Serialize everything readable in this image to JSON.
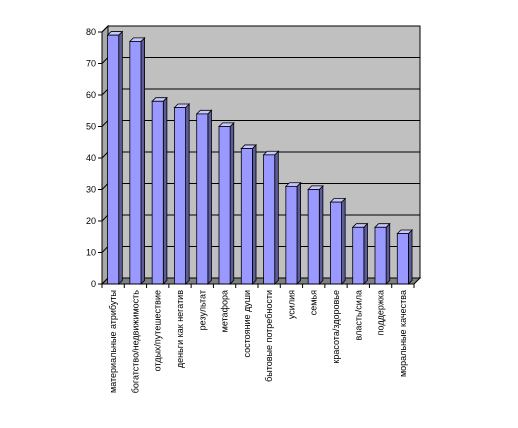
{
  "chart_data": {
    "type": "bar",
    "title": "",
    "xlabel": "",
    "ylabel": "",
    "ylim": [
      0,
      80
    ],
    "yticks": [
      0,
      10,
      20,
      30,
      40,
      50,
      60,
      70,
      80
    ],
    "grid": true,
    "legend": "none",
    "categories": [
      "материальные атрибуты",
      "богатство/недвижимость",
      "отдых/путешествие",
      "деньги как негатив",
      "результат",
      "метафора",
      "состояние души",
      "бытовые потребности",
      "усилия",
      "семья",
      "красота/здоровье",
      "власть/сила",
      "поддержка",
      "моральные качества"
    ],
    "values": [
      79,
      77,
      58,
      56,
      54,
      50,
      43,
      41,
      31,
      30,
      26,
      18,
      18,
      16
    ],
    "colors": {
      "plot_background": "#c0c0c0",
      "bar_front": "#9999ff",
      "bar_side": "#5c5c99",
      "bar_top": "#c7c7ff",
      "gridline": "#000000",
      "floor": "#808080"
    }
  }
}
